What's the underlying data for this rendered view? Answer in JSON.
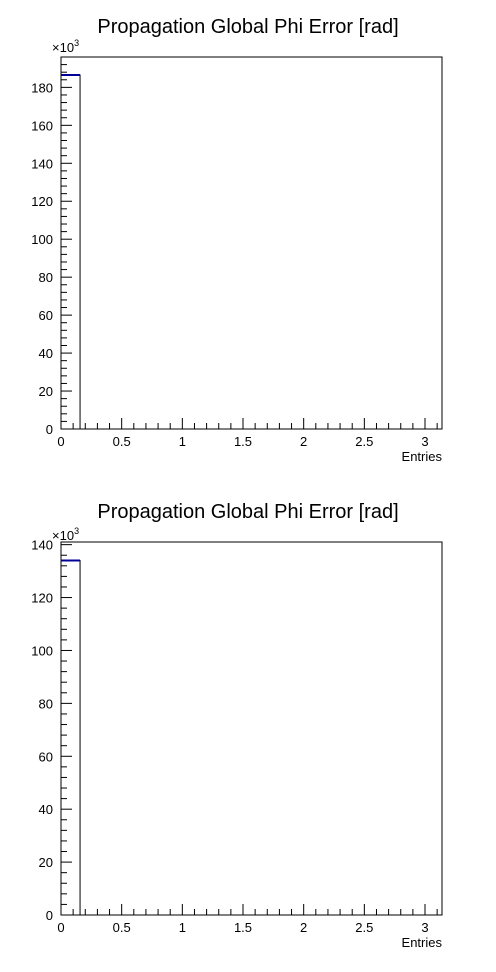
{
  "chart_data": [
    {
      "type": "bar",
      "title": "Propagation Global Phi Error [rad]",
      "xlabel": "Entries",
      "ylabel": "",
      "y_multiplier": "×10",
      "y_multiplier_exponent": "3",
      "xlim": [
        0,
        3.14
      ],
      "ylim": [
        0,
        196
      ],
      "x_ticks": [
        0,
        0.5,
        1,
        1.5,
        2,
        2.5,
        3
      ],
      "x_tick_labels": [
        "0",
        "0.5",
        "1",
        "1.5",
        "2",
        "2.5",
        "3"
      ],
      "y_ticks": [
        0,
        20,
        40,
        60,
        80,
        100,
        120,
        140,
        160,
        180
      ],
      "y_tick_labels": [
        "0",
        "20",
        "40",
        "60",
        "80",
        "100",
        "120",
        "140",
        "160",
        "180"
      ],
      "bins": [
        {
          "x_low": 0,
          "x_high": 0.157,
          "value": 186.5
        }
      ],
      "line_color": "#000099"
    },
    {
      "type": "bar",
      "title": "Propagation Global Phi Error [rad]",
      "xlabel": "Entries",
      "ylabel": "",
      "y_multiplier": "×10",
      "y_multiplier_exponent": "3",
      "xlim": [
        0,
        3.14
      ],
      "ylim": [
        0,
        141
      ],
      "x_ticks": [
        0,
        0.5,
        1,
        1.5,
        2,
        2.5,
        3
      ],
      "x_tick_labels": [
        "0",
        "0.5",
        "1",
        "1.5",
        "2",
        "2.5",
        "3"
      ],
      "y_ticks": [
        0,
        20,
        40,
        60,
        80,
        100,
        120,
        140
      ],
      "y_tick_labels": [
        "0",
        "20",
        "40",
        "60",
        "80",
        "100",
        "120",
        "140"
      ],
      "bins": [
        {
          "x_low": 0,
          "x_high": 0.157,
          "value": 134
        }
      ],
      "line_color": "#000099"
    }
  ]
}
